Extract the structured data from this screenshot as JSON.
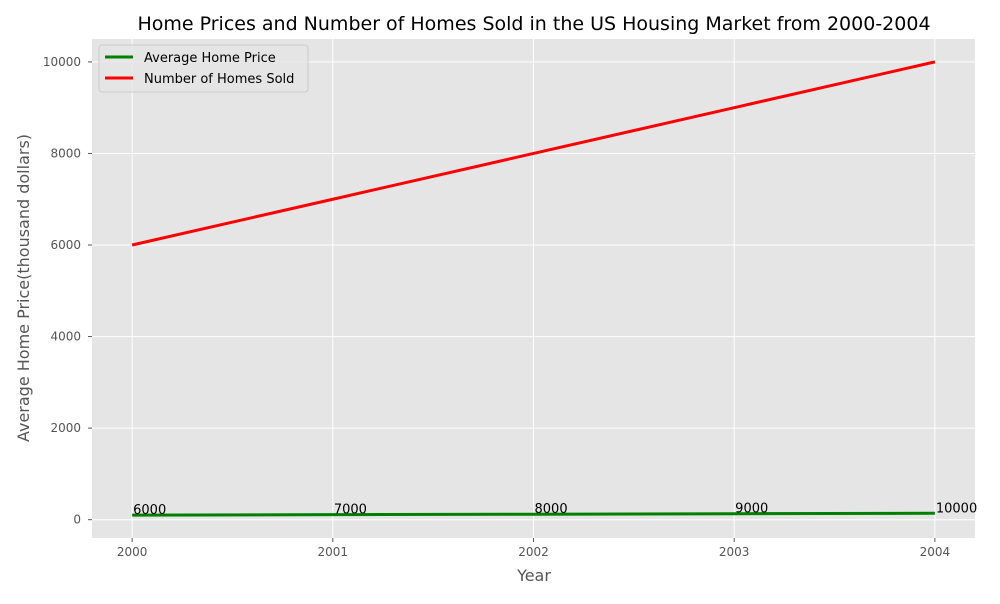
{
  "chart_data": {
    "type": "line",
    "title": "Home Prices and Number of Homes Sold in the US Housing Market from 2000-2004",
    "xlabel": "Year",
    "ylabel": "Average Home Price(thousand dollars)",
    "x": [
      2000,
      2001,
      2002,
      2003,
      2004
    ],
    "x_tick_labels": [
      "2000",
      "2001",
      "2002",
      "2003",
      "2004"
    ],
    "xlim": [
      1999.8,
      2004.2
    ],
    "ylim": [
      -400,
      10500
    ],
    "y_ticks": [
      0,
      2000,
      4000,
      6000,
      8000,
      10000
    ],
    "y_tick_labels": [
      "0",
      "2000",
      "4000",
      "6000",
      "8000",
      "10000"
    ],
    "grid": true,
    "legend_position": "top-left",
    "series": [
      {
        "name": "Average Home Price",
        "color": "#008000",
        "values": [
          100,
          110,
          120,
          130,
          140
        ]
      },
      {
        "name": "Number of Homes Sold",
        "color": "#ff0000",
        "values": [
          6000,
          7000,
          8000,
          9000,
          10000
        ]
      }
    ],
    "annotations": [
      "6000",
      "7000",
      "8000",
      "9000",
      "10000"
    ]
  },
  "colors": {
    "plot_background": "#e5e5e5",
    "grid": "#ffffff",
    "tick_text": "#555555",
    "title_text": "#000000"
  }
}
